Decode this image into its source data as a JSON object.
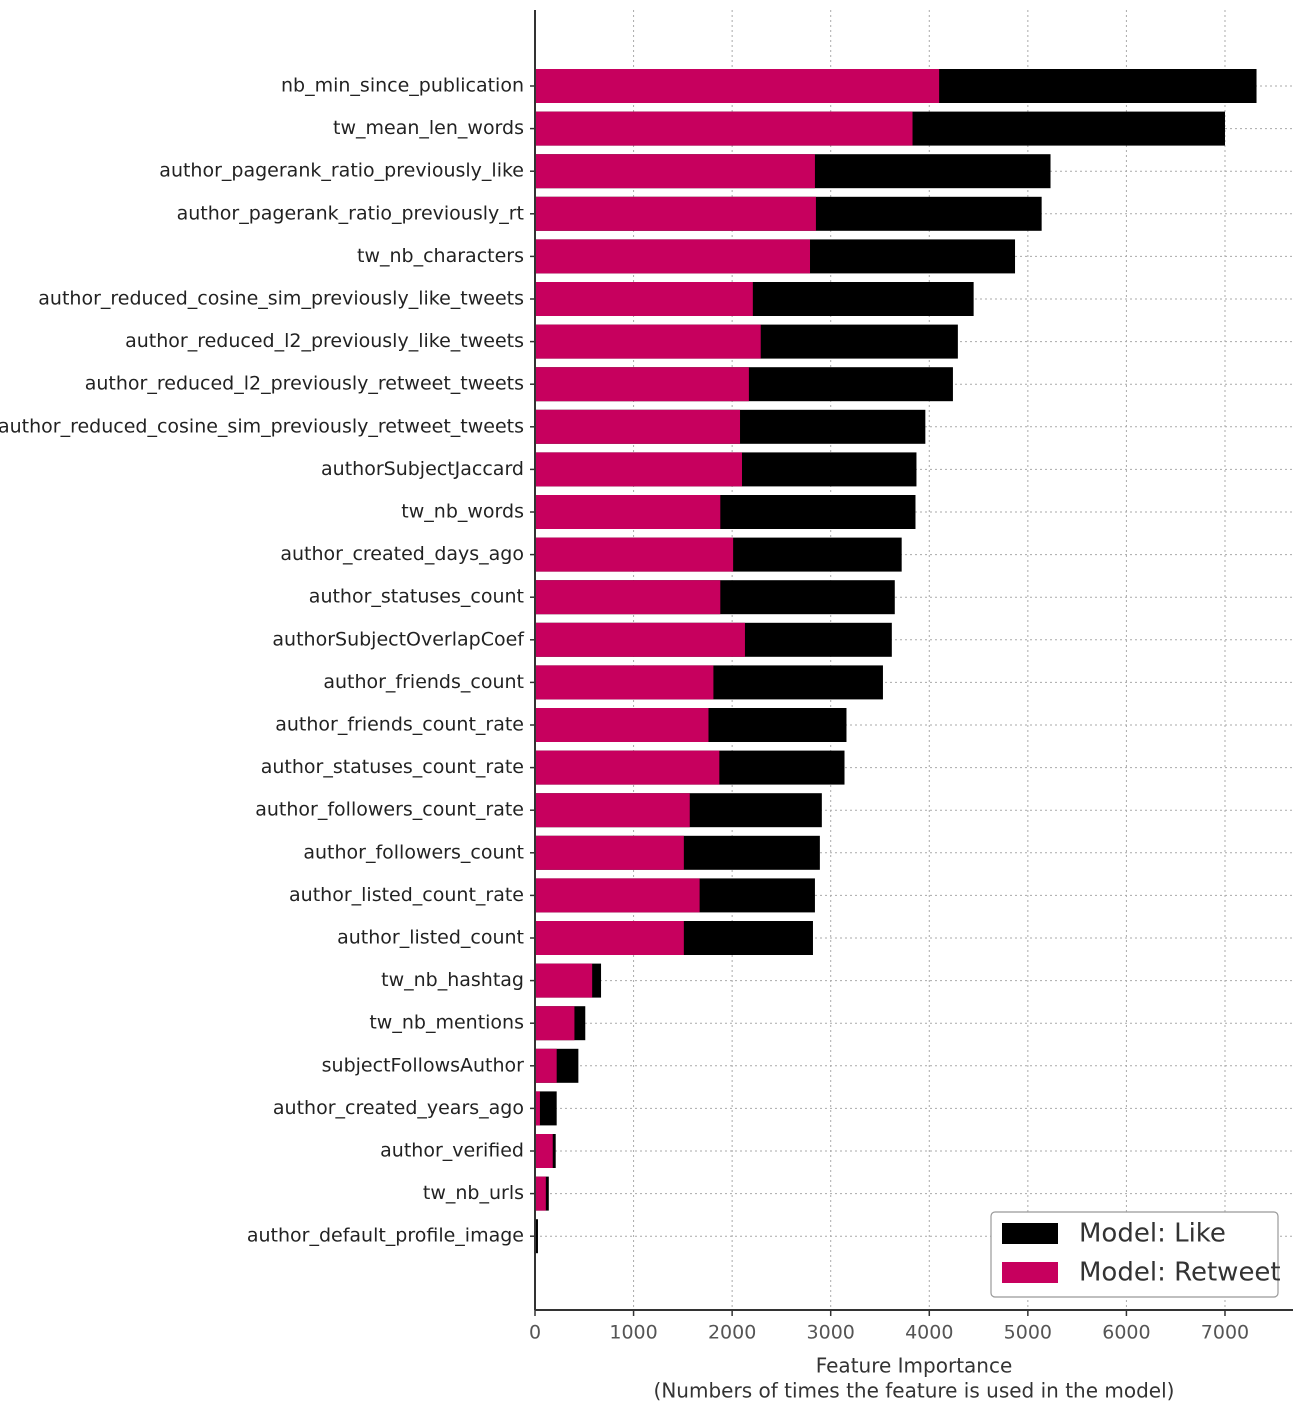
{
  "chart_data": {
    "type": "barh",
    "categories": [
      "nb_min_since_publication",
      "tw_mean_len_words",
      "author_pagerank_ratio_previously_like",
      "author_pagerank_ratio_previously_rt",
      "tw_nb_characters",
      "author_reduced_cosine_sim_previously_like_tweets",
      "author_reduced_l2_previously_like_tweets",
      "author_reduced_l2_previously_retweet_tweets",
      "author_reduced_cosine_sim_previously_retweet_tweets",
      "authorSubjectJaccard",
      "tw_nb_words",
      "author_created_days_ago",
      "author_statuses_count",
      "authorSubjectOverlapCoef",
      "author_friends_count",
      "author_friends_count_rate",
      "author_statuses_count_rate",
      "author_followers_count_rate",
      "author_followers_count",
      "author_listed_count_rate",
      "author_listed_count",
      "tw_nb_hashtag",
      "tw_nb_mentions",
      "subjectFollowsAuthor",
      "author_created_years_ago",
      "author_verified",
      "tw_nb_urls",
      "author_default_profile_image"
    ],
    "series": [
      {
        "name": "Model: Like",
        "color": "#000000",
        "values": [
          7320,
          7000,
          5230,
          5140,
          4870,
          4450,
          4290,
          4240,
          3960,
          3870,
          3860,
          3720,
          3650,
          3620,
          3530,
          3160,
          3140,
          2910,
          2890,
          2840,
          2820,
          670,
          510,
          440,
          220,
          210,
          140,
          30
        ]
      },
      {
        "name": "Model: Retweet",
        "color": "#c7005e",
        "values": [
          4100,
          3830,
          2840,
          2850,
          2790,
          2210,
          2290,
          2170,
          2080,
          2100,
          1880,
          2010,
          1880,
          2130,
          1810,
          1760,
          1870,
          1570,
          1510,
          1670,
          1510,
          580,
          400,
          220,
          50,
          180,
          110,
          0
        ]
      }
    ],
    "xlim": [
      0,
      7690
    ],
    "xticks": [
      0,
      1000,
      2000,
      3000,
      4000,
      5000,
      6000,
      7000
    ],
    "xlabel": [
      "Feature Importance",
      "(Numbers of times the feature is used in the model)"
    ],
    "grid": true,
    "legend": "lower right"
  }
}
